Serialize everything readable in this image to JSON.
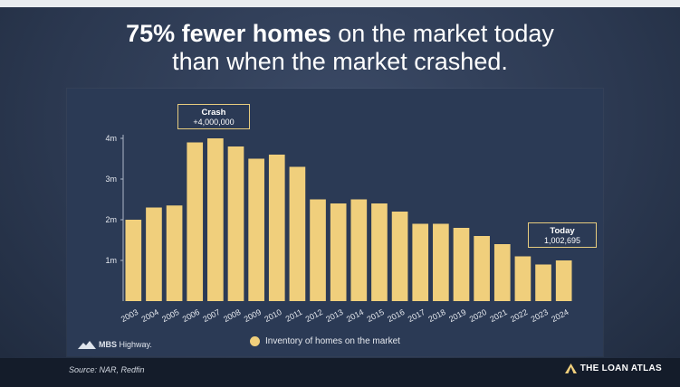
{
  "title": {
    "bold": "75% fewer homes",
    "rest_line1": " on the market today",
    "line2": "than when the market crashed."
  },
  "callouts": {
    "crash": {
      "heading": "Crash",
      "value": "+4,000,000"
    },
    "today": {
      "heading": "Today",
      "value": "1,002,695"
    }
  },
  "legend": {
    "label": "Inventory of homes on the market"
  },
  "footer": {
    "source": "Source: NAR, Redfin",
    "mbs_logo": "MBS",
    "mbs_logo_rest": " Highway.",
    "brand": "THE LOAN ATLAS"
  },
  "colors": {
    "bar": "#f0cf7c",
    "callout_border": "#e7cc7e",
    "panel": "#2b3a55"
  },
  "icons": {
    "mbs": "mountain-logo-icon",
    "brand": "triangle-logo-icon"
  },
  "chart_data": {
    "type": "bar",
    "categories": [
      "2003",
      "2004",
      "2005",
      "2006",
      "2007",
      "2008",
      "2009",
      "2010",
      "2011",
      "2012",
      "2013",
      "2014",
      "2015",
      "2016",
      "2017",
      "2018",
      "2019",
      "2020",
      "2021",
      "2022",
      "2023",
      "2024"
    ],
    "series": [
      {
        "name": "Inventory of homes on the market",
        "values": [
          2.0,
          2.3,
          2.35,
          3.9,
          4.0,
          3.8,
          3.5,
          3.6,
          3.3,
          2.5,
          2.4,
          2.5,
          2.4,
          2.2,
          1.9,
          1.9,
          1.8,
          1.6,
          1.4,
          1.1,
          0.9,
          1.0
        ]
      }
    ],
    "yticks": [
      1,
      2,
      3,
      4
    ],
    "ytick_labels": [
      "1m",
      "2m",
      "3m",
      "4m"
    ],
    "ylim": [
      0,
      4
    ],
    "legend": "bottom-center",
    "grid": false
  }
}
